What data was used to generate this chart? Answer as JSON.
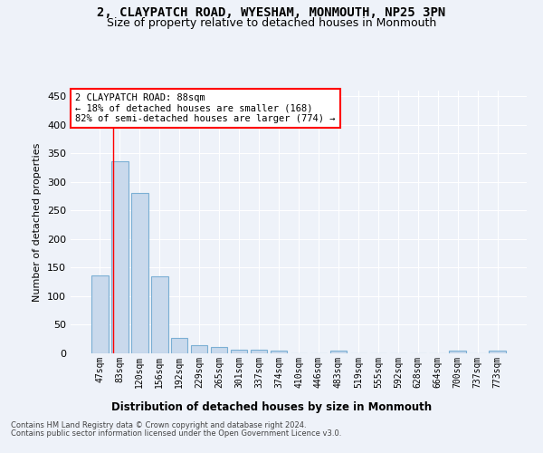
{
  "title_line1": "2, CLAYPATCH ROAD, WYESHAM, MONMOUTH, NP25 3PN",
  "title_line2": "Size of property relative to detached houses in Monmouth",
  "xlabel": "Distribution of detached houses by size in Monmouth",
  "ylabel": "Number of detached properties",
  "bar_color": "#c9d9ec",
  "bar_edge_color": "#7bafd4",
  "annotation_text": "2 CLAYPATCH ROAD: 88sqm\n← 18% of detached houses are smaller (168)\n82% of semi-detached houses are larger (774) →",
  "footer_line1": "Contains HM Land Registry data © Crown copyright and database right 2024.",
  "footer_line2": "Contains public sector information licensed under the Open Government Licence v3.0.",
  "bin_labels": [
    "47sqm",
    "83sqm",
    "120sqm",
    "156sqm",
    "192sqm",
    "229sqm",
    "265sqm",
    "301sqm",
    "337sqm",
    "374sqm",
    "410sqm",
    "446sqm",
    "483sqm",
    "519sqm",
    "555sqm",
    "592sqm",
    "628sqm",
    "664sqm",
    "700sqm",
    "737sqm",
    "773sqm"
  ],
  "bar_heights": [
    136,
    336,
    281,
    135,
    27,
    15,
    11,
    7,
    6,
    5,
    0,
    0,
    5,
    0,
    0,
    0,
    0,
    0,
    5,
    0,
    5
  ],
  "red_line_x": 0.14,
  "ylim": [
    0,
    460
  ],
  "yticks": [
    0,
    50,
    100,
    150,
    200,
    250,
    300,
    350,
    400,
    450
  ],
  "background_color": "#eef2f9",
  "grid_color": "#ffffff"
}
